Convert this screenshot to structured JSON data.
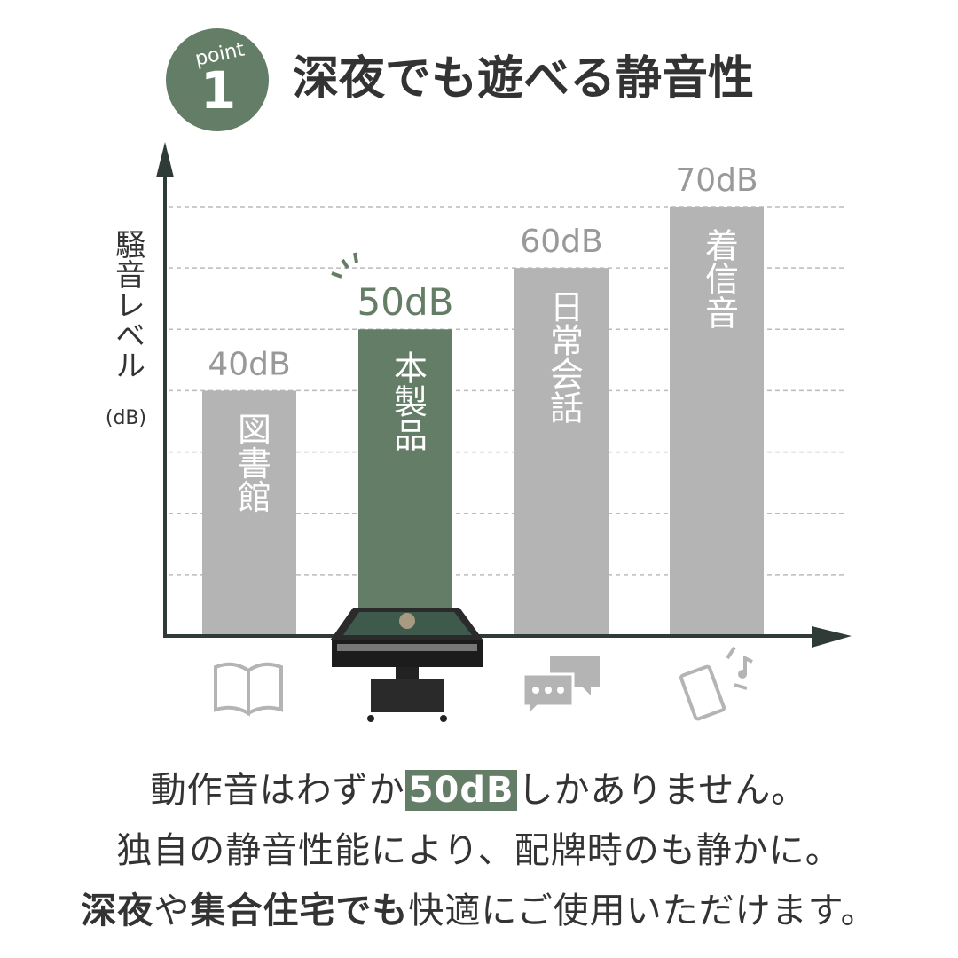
{
  "badge": {
    "word": "point",
    "number": "1"
  },
  "chart_data": {
    "type": "bar",
    "title": "深夜でも遊べる静音性",
    "y_label": "騒音レベル",
    "y_unit": "(dB)",
    "categories": [
      "図書館",
      "本製品",
      "日常会話",
      "着信音"
    ],
    "values": [
      40,
      50,
      60,
      70
    ],
    "value_labels": [
      "40dB",
      "50dB",
      "60dB",
      "70dB"
    ],
    "colors": [
      "#b4b4b4",
      "#647d66",
      "#b4b4b4",
      "#b4b4b4"
    ],
    "ylim": [
      0,
      70
    ],
    "yticks": [
      10,
      20,
      30,
      40,
      50,
      60,
      70
    ],
    "grid": true
  },
  "caption": [
    [
      "動作音はわずか",
      "50dB",
      "しかありません。"
    ],
    [
      "独自の静音性能により、配牌時のも静かに。"
    ],
    [
      "深夜",
      "や",
      "集合住宅でも",
      "快適にご使用いただけます。"
    ]
  ]
}
